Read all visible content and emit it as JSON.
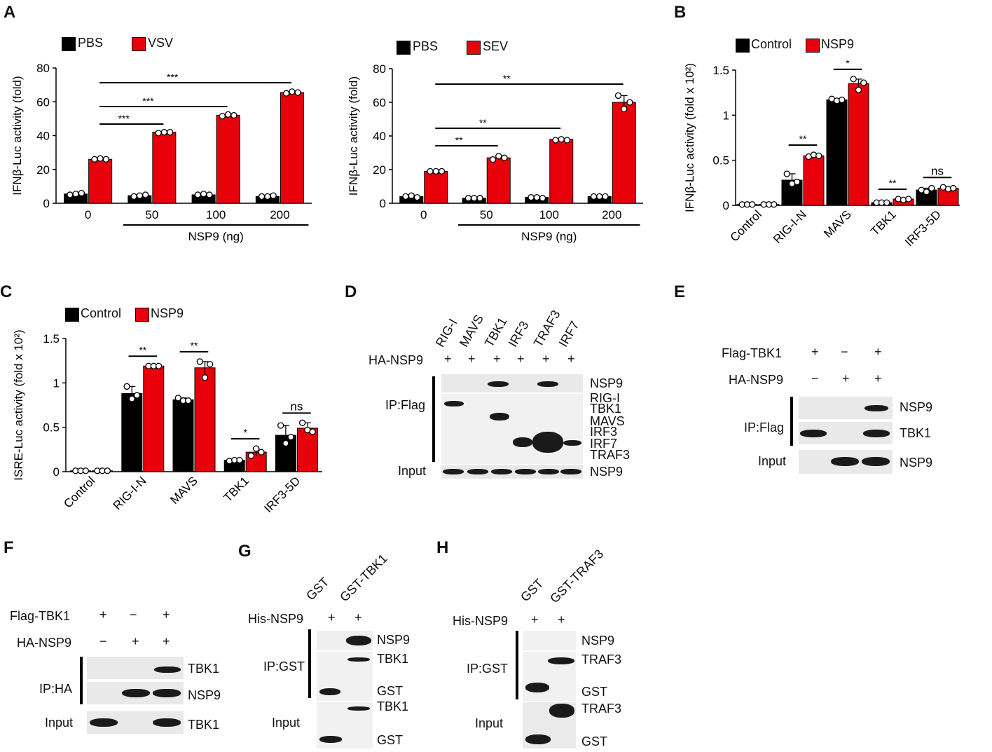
{
  "panels": {
    "A": "A",
    "B": "B",
    "C": "C",
    "D": "D",
    "E": "E",
    "F": "F",
    "G": "G",
    "H": "H"
  },
  "chart_data": [
    {
      "id": "A1",
      "type": "bar",
      "categories": [
        "0",
        "50",
        "100",
        "200"
      ],
      "series": [
        {
          "name": "PBS",
          "color": "#000000",
          "values": [
            5.5,
            4.5,
            5.0,
            4.0
          ],
          "points": [
            [
              5,
              5.5,
              6
            ],
            [
              4,
              4.5,
              5
            ],
            [
              5,
              5.5,
              5
            ],
            [
              4,
              4,
              4.5
            ]
          ]
        },
        {
          "name": "VSV",
          "color": "#e8000b",
          "values": [
            26,
            42,
            52,
            65.5
          ],
          "points": [
            [
              26,
              26.5,
              26
            ],
            [
              41.5,
              42,
              42
            ],
            [
              51.5,
              52.5,
              52
            ],
            [
              65,
              66,
              65.5
            ]
          ]
        }
      ],
      "ylabel": "IFNβ-Luc activity (fold)",
      "xlabel": "NSP9 (ng)",
      "ylim": [
        0,
        80
      ],
      "yticks": [
        0,
        20,
        40,
        60,
        80
      ],
      "significance": [
        {
          "from": "0",
          "to": "50",
          "label": "***"
        },
        {
          "from": "0",
          "to": "100",
          "label": "***"
        },
        {
          "from": "0",
          "to": "200",
          "label": "***"
        }
      ]
    },
    {
      "id": "A2",
      "type": "bar",
      "categories": [
        "0",
        "50",
        "100",
        "200"
      ],
      "series": [
        {
          "name": "PBS",
          "color": "#000000",
          "values": [
            4.0,
            3.0,
            3.5,
            4.0
          ],
          "points": [
            [
              4,
              4.5,
              3.5
            ],
            [
              3,
              3,
              3
            ],
            [
              3.5,
              3.5,
              3
            ],
            [
              4,
              4,
              4
            ]
          ]
        },
        {
          "name": "SEV",
          "color": "#e8000b",
          "values": [
            19,
            27,
            38,
            60
          ],
          "points": [
            [
              19,
              19,
              19
            ],
            [
              26,
              28,
              27
            ],
            [
              37.5,
              38,
              37.5
            ],
            [
              64,
              56,
              60
            ]
          ]
        }
      ],
      "ylabel": "IFNβ-Luc activity (fold)",
      "xlabel": "NSP9 (ng)",
      "ylim": [
        0,
        80
      ],
      "yticks": [
        0,
        20,
        40,
        60,
        80
      ],
      "significance": [
        {
          "from": "0",
          "to": "50",
          "label": "**"
        },
        {
          "from": "0",
          "to": "100",
          "label": "**"
        },
        {
          "from": "0",
          "to": "200",
          "label": "**"
        }
      ]
    },
    {
      "id": "B",
      "type": "bar",
      "categories": [
        "Control",
        "RIG-I-N",
        "MAVS",
        "TBK1",
        "IRF3-5D"
      ],
      "series": [
        {
          "name": "Control",
          "color": "#000000",
          "values": [
            0.01,
            0.28,
            1.17,
            0.03,
            0.17
          ],
          "points": [
            [
              0.01,
              0.01,
              0.01
            ],
            [
              0.35,
              0.24,
              0.26
            ],
            [
              1.18,
              1.16,
              1.17
            ],
            [
              0.03,
              0.03,
              0.03
            ],
            [
              0.17,
              0.15,
              0.19
            ]
          ]
        },
        {
          "name": "NSP9",
          "color": "#e8000b",
          "values": [
            0.01,
            0.55,
            1.35,
            0.07,
            0.19
          ],
          "points": [
            [
              0.01,
              0.01,
              0.01
            ],
            [
              0.54,
              0.56,
              0.55
            ],
            [
              1.4,
              1.28,
              1.36
            ],
            [
              0.07,
              0.06,
              0.07
            ],
            [
              0.2,
              0.18,
              0.19
            ]
          ]
        }
      ],
      "ylabel": "IFNβ-Luc activity (fold x 10²)",
      "ylim": [
        0,
        1.5
      ],
      "yticks": [
        0,
        0.5,
        1,
        1.5
      ],
      "yticklabels": [
        "0",
        "0.5",
        "1",
        "1.5"
      ],
      "significance": [
        {
          "category": "RIG-I-N",
          "label": "**"
        },
        {
          "category": "MAVS",
          "label": "*"
        },
        {
          "category": "TBK1",
          "label": "**"
        },
        {
          "category": "IRF3-5D",
          "label": "ns"
        }
      ]
    },
    {
      "id": "C",
      "type": "bar",
      "categories": [
        "Control",
        "RIG-I-N",
        "MAVS",
        "TBK1",
        "IRF3-5D"
      ],
      "series": [
        {
          "name": "Control",
          "color": "#000000",
          "values": [
            0.01,
            0.88,
            0.81,
            0.13,
            0.41
          ],
          "points": [
            [
              0.01,
              0.01,
              0.01
            ],
            [
              0.96,
              0.82,
              0.86
            ],
            [
              0.83,
              0.8,
              0.8
            ],
            [
              0.12,
              0.13,
              0.13
            ],
            [
              0.52,
              0.32,
              0.39
            ]
          ]
        },
        {
          "name": "NSP9",
          "color": "#e8000b",
          "values": [
            0.01,
            1.19,
            1.17,
            0.22,
            0.49
          ],
          "points": [
            [
              0.01,
              0.01,
              0.01
            ],
            [
              1.19,
              1.19,
              1.19
            ],
            [
              1.24,
              1.06,
              1.21
            ],
            [
              0.18,
              0.26,
              0.22
            ],
            [
              0.55,
              0.47,
              0.45
            ]
          ]
        }
      ],
      "ylabel": "ISRE-Luc activity (fold x 10²)",
      "ylim": [
        0,
        1.5
      ],
      "yticks": [
        0,
        0.5,
        1,
        1.5
      ],
      "yticklabels": [
        "0",
        "0.5",
        "1",
        "1.5"
      ],
      "significance": [
        {
          "category": "RIG-I-N",
          "label": "**"
        },
        {
          "category": "MAVS",
          "label": "**"
        },
        {
          "category": "TBK1",
          "label": "*"
        },
        {
          "category": "IRF3-5D",
          "label": "ns"
        }
      ]
    }
  ],
  "legends": {
    "a1": [
      "PBS",
      "VSV"
    ],
    "a2": [
      "PBS",
      "SEV"
    ],
    "b": [
      "Control",
      "NSP9"
    ],
    "c": [
      "Control",
      "NSP9"
    ]
  },
  "panelD": {
    "lanes": [
      "RIG-I",
      "MAVS",
      "TBK1",
      "IRF3",
      "TRAF3",
      "IRF7"
    ],
    "row_label": "HA-NSP9",
    "signs": [
      "+",
      "+",
      "+",
      "+",
      "+",
      "+"
    ],
    "ip": "IP:Flag",
    "input": "Input",
    "right_labels": [
      "NSP9",
      "RIG-I",
      "TBK1",
      "MAVS",
      "IRF3",
      "IRF7",
      "TRAF3"
    ],
    "input_right": "NSP9"
  },
  "panelE": {
    "rows": [
      {
        "label": "Flag-TBK1",
        "signs": [
          "+",
          "−",
          "+"
        ]
      },
      {
        "label": "HA-NSP9",
        "signs": [
          "−",
          "+",
          "+"
        ]
      }
    ],
    "ip": "IP:Flag",
    "input": "Input",
    "right_labels": [
      "NSP9",
      "TBK1",
      "NSP9"
    ]
  },
  "panelF": {
    "rows": [
      {
        "label": "Flag-TBK1",
        "signs": [
          "+",
          "−",
          "+"
        ]
      },
      {
        "label": "HA-NSP9",
        "signs": [
          "−",
          "+",
          "+"
        ]
      }
    ],
    "ip": "IP:HA",
    "input": "Input",
    "right_labels": [
      "TBK1",
      "NSP9",
      "TBK1"
    ]
  },
  "panelG": {
    "lanes": [
      "GST",
      "GST-TBK1"
    ],
    "row_label": "His-NSP9",
    "signs": [
      "+",
      "+"
    ],
    "ip": "IP:GST",
    "input": "Input",
    "right_labels": [
      "NSP9",
      "TBK1",
      "GST",
      "TBK1",
      "GST"
    ]
  },
  "panelH": {
    "lanes": [
      "GST",
      "GST-TRAF3"
    ],
    "row_label": "His-NSP9",
    "signs": [
      "+",
      "+"
    ],
    "ip": "IP:GST",
    "input": "Input",
    "right_labels": [
      "NSP9",
      "TRAF3",
      "GST",
      "TRAF3",
      "GST"
    ]
  }
}
